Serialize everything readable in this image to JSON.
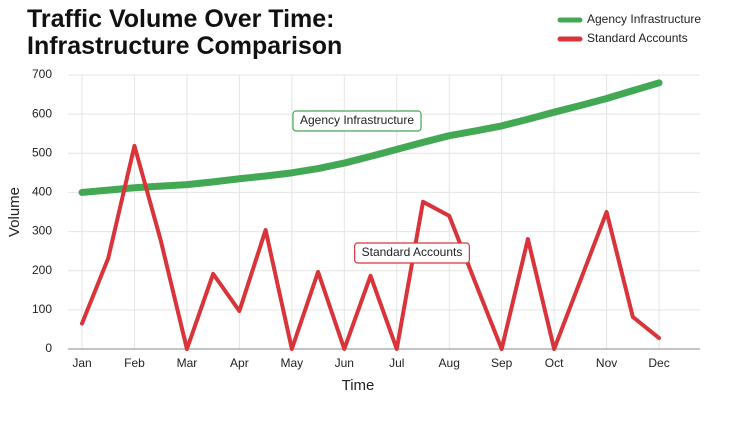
{
  "chart_data": {
    "type": "line",
    "title": "Traffic Volume Over Time: Infrastructure Comparison",
    "x_label": "Time",
    "y_label": "Volume",
    "categories": [
      "Jan",
      null,
      "Feb",
      null,
      "Mar",
      null,
      "Apr",
      null,
      "May",
      null,
      "Jun",
      null,
      "Jul",
      null,
      "Aug",
      null,
      "Sep",
      null,
      "Oct",
      null,
      "Nov",
      null,
      "Dec"
    ],
    "series": [
      {
        "name": "Agency Infrastructure",
        "color": "#43a853",
        "values": [
          400,
          406,
          412,
          416,
          420,
          427,
          435,
          442,
          450,
          461,
          475,
          492,
          510,
          528,
          545,
          557,
          570,
          587,
          605,
          622,
          640,
          660,
          680
        ]
      },
      {
        "name": "Standard Accounts",
        "color": "#d9343a",
        "values": [
          65,
          232,
          519,
          278,
          0,
          192,
          97,
          304,
          0,
          197,
          0,
          187,
          0,
          376,
          340,
          169,
          0,
          281,
          0,
          175,
          350,
          82,
          28
        ]
      }
    ],
    "annotations": [
      "Agency Infrastructure",
      "Standard Accounts"
    ],
    "ylim": [
      0,
      700
    ],
    "yticks": [
      0,
      100,
      200,
      300,
      400,
      500,
      600,
      700
    ],
    "grid": true,
    "legend": "top-right"
  }
}
